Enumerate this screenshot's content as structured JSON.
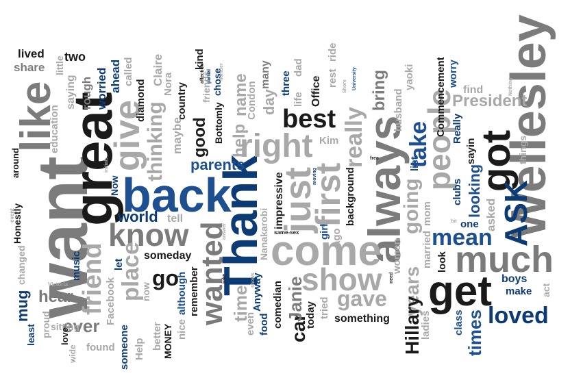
{
  "colors": {
    "dark_gray": "#1a1a1a",
    "mid_gray": "#7b7b7b",
    "light_gray": "#a8a8a8",
    "navy": "#0c3a75",
    "blue": "#1d4f91"
  },
  "words": [
    {
      "text": "want",
      "weight": 10,
      "color": "mid_gray"
    },
    {
      "text": "great",
      "weight": 8,
      "color": "dark_gray"
    },
    {
      "text": "Thank",
      "weight": 8,
      "color": "navy"
    },
    {
      "text": "back",
      "weight": 8,
      "color": "blue"
    },
    {
      "text": "Wellesley",
      "weight": 8,
      "color": "mid_gray"
    },
    {
      "text": "always",
      "weight": 7,
      "color": "mid_gray"
    },
    {
      "text": "come",
      "weight": 7,
      "color": "light_gray"
    },
    {
      "text": "like",
      "weight": 7,
      "color": "mid_gray"
    },
    {
      "text": "got",
      "weight": 6,
      "color": "dark_gray"
    },
    {
      "text": "much",
      "weight": 6,
      "color": "mid_gray"
    },
    {
      "text": "get",
      "weight": 6,
      "color": "dark_gray"
    },
    {
      "text": "ASK",
      "weight": 6,
      "color": "navy"
    },
    {
      "text": "give",
      "weight": 6,
      "color": "light_gray"
    },
    {
      "text": "just",
      "weight": 6,
      "color": "light_gray"
    },
    {
      "text": "show",
      "weight": 5,
      "color": "light_gray"
    },
    {
      "text": "first",
      "weight": 5,
      "color": "light_gray"
    },
    {
      "text": "right",
      "weight": 5,
      "color": "light_gray"
    },
    {
      "text": "know",
      "weight": 5,
      "color": "mid_gray"
    },
    {
      "text": "people",
      "weight": 5,
      "color": "light_gray"
    },
    {
      "text": "wanted",
      "weight": 5,
      "color": "mid_gray"
    },
    {
      "text": "friend",
      "weight": 5,
      "color": "light_gray"
    },
    {
      "text": "best",
      "weight": 4,
      "color": "dark_gray"
    },
    {
      "text": "mean",
      "weight": 4,
      "color": "blue"
    },
    {
      "text": "loved",
      "weight": 4,
      "color": "navy"
    },
    {
      "text": "take",
      "weight": 4,
      "color": "blue"
    },
    {
      "text": "gave",
      "weight": 4,
      "color": "light_gray"
    },
    {
      "text": "place",
      "weight": 4,
      "color": "light_gray"
    },
    {
      "text": "going",
      "weight": 4,
      "color": "light_gray"
    },
    {
      "text": "really",
      "weight": 4,
      "color": "light_gray"
    },
    {
      "text": "thinking",
      "weight": 4,
      "color": "light_gray"
    },
    {
      "text": "years",
      "weight": 4,
      "color": "light_gray"
    },
    {
      "text": "Hillary",
      "weight": 3,
      "color": "dark_gray"
    },
    {
      "text": "President",
      "weight": 3,
      "color": "light_gray"
    },
    {
      "text": "go",
      "weight": 3,
      "color": "dark_gray"
    },
    {
      "text": "times",
      "weight": 3,
      "color": "blue"
    },
    {
      "text": "hear",
      "weight": 3,
      "color": "mid_gray"
    },
    {
      "text": "ever",
      "weight": 3,
      "color": "mid_gray"
    },
    {
      "text": "looking",
      "weight": 3,
      "color": "blue"
    },
    {
      "text": "parents",
      "weight": 3,
      "color": "blue"
    },
    {
      "text": "world",
      "weight": 3,
      "color": "navy"
    },
    {
      "text": "car",
      "weight": 3,
      "color": "dark_gray"
    },
    {
      "text": "time",
      "weight": 3,
      "color": "light_gray"
    },
    {
      "text": "Janie",
      "weight": 3,
      "color": "mid_gray"
    },
    {
      "text": "bring",
      "weight": 3,
      "color": "mid_gray"
    },
    {
      "text": "good",
      "weight": 3,
      "color": "dark_gray"
    },
    {
      "text": "help",
      "weight": 3,
      "color": "light_gray"
    },
    {
      "text": "name",
      "weight": 3,
      "color": "light_gray"
    },
    {
      "text": "day",
      "weight": 3,
      "color": "light_gray"
    },
    {
      "text": "mug",
      "weight": 3,
      "color": "navy"
    },
    {
      "text": "two",
      "weight": 2,
      "color": "dark_gray"
    },
    {
      "text": "lived",
      "weight": 2,
      "color": "dark_gray"
    },
    {
      "text": "share",
      "weight": 2,
      "color": "mid_gray"
    },
    {
      "text": "saying",
      "weight": 2,
      "color": "light_gray"
    },
    {
      "text": "education",
      "weight": 2,
      "color": "light_gray"
    },
    {
      "text": "little",
      "weight": 2,
      "color": "light_gray"
    },
    {
      "text": "rough",
      "weight": 2,
      "color": "mid_gray"
    },
    {
      "text": "worried",
      "weight": 2,
      "color": "navy"
    },
    {
      "text": "ahead",
      "weight": 2,
      "color": "navy"
    },
    {
      "text": "called",
      "weight": 2,
      "color": "light_gray"
    },
    {
      "text": "Claire",
      "weight": 2,
      "color": "light_gray"
    },
    {
      "text": "Nora",
      "weight": 2,
      "color": "light_gray"
    },
    {
      "text": "diamond",
      "weight": 2,
      "color": "dark_gray"
    },
    {
      "text": "better",
      "weight": 2,
      "color": "light_gray"
    },
    {
      "text": "maybe",
      "weight": 2,
      "color": "light_gray"
    },
    {
      "text": "country",
      "weight": 2,
      "color": "dark_gray"
    },
    {
      "text": "kind",
      "weight": 2,
      "color": "dark_gray"
    },
    {
      "text": "friends",
      "weight": 2,
      "color": "light_gray"
    },
    {
      "text": "Bottomly",
      "weight": 2,
      "color": "dark_gray"
    },
    {
      "text": "chose",
      "weight": 2,
      "color": "navy"
    },
    {
      "text": "many",
      "weight": 2,
      "color": "mid_gray"
    },
    {
      "text": "Condon",
      "weight": 2,
      "color": "light_gray"
    },
    {
      "text": "three",
      "weight": 2,
      "color": "navy"
    },
    {
      "text": "life",
      "weight": 2,
      "color": "light_gray"
    },
    {
      "text": "dad",
      "weight": 2,
      "color": "light_gray"
    },
    {
      "text": "Office",
      "weight": 2,
      "color": "dark_gray"
    },
    {
      "text": "rest",
      "weight": 2,
      "color": "light_gray"
    },
    {
      "text": "ride",
      "weight": 2,
      "color": "light_gray"
    },
    {
      "text": "Kim",
      "weight": 2,
      "color": "light_gray"
    },
    {
      "text": "background",
      "weight": 2,
      "color": "dark_gray"
    },
    {
      "text": "husband",
      "weight": 2,
      "color": "light_gray"
    },
    {
      "text": "yaoki",
      "weight": 2,
      "color": "light_gray"
    },
    {
      "text": "Commencement",
      "weight": 2,
      "color": "dark_gray"
    },
    {
      "text": "worry",
      "weight": 2,
      "color": "blue"
    },
    {
      "text": "find",
      "weight": 2,
      "color": "light_gray"
    },
    {
      "text": "Really",
      "weight": 2,
      "color": "navy"
    },
    {
      "text": "sayin",
      "weight": 2,
      "color": "dark_gray"
    },
    {
      "text": "things",
      "weight": 2,
      "color": "light_gray"
    },
    {
      "text": "list",
      "weight": 2,
      "color": "blue"
    },
    {
      "text": "clubs",
      "weight": 2,
      "color": "navy"
    },
    {
      "text": "asked",
      "weight": 2,
      "color": "light_gray"
    },
    {
      "text": "one",
      "weight": 2,
      "color": "navy"
    },
    {
      "text": "mom",
      "weight": 2,
      "color": "light_gray"
    },
    {
      "text": "married",
      "weight": 2,
      "color": "light_gray"
    },
    {
      "text": "look",
      "weight": 2,
      "color": "dark_gray"
    },
    {
      "text": "boys",
      "weight": 2,
      "color": "navy"
    },
    {
      "text": "make",
      "weight": 2,
      "color": "navy"
    },
    {
      "text": "act",
      "weight": 2,
      "color": "light_gray"
    },
    {
      "text": "class",
      "weight": 2,
      "color": "blue"
    },
    {
      "text": "ladies",
      "weight": 2,
      "color": "light_gray"
    },
    {
      "text": "women",
      "weight": 2,
      "color": "light_gray"
    },
    {
      "text": "something",
      "weight": 2,
      "color": "dark_gray"
    },
    {
      "text": "tried",
      "weight": 2,
      "color": "light_gray"
    },
    {
      "text": "today",
      "weight": 2,
      "color": "dark_gray"
    },
    {
      "text": "ago",
      "weight": 2,
      "color": "light_gray"
    },
    {
      "text": "girl",
      "weight": 2,
      "color": "blue"
    },
    {
      "text": "impressive",
      "weight": 2,
      "color": "dark_gray"
    },
    {
      "text": "Nanakarobi",
      "weight": 2,
      "color": "light_gray"
    },
    {
      "text": "comedian",
      "weight": 2,
      "color": "dark_gray"
    },
    {
      "text": "food",
      "weight": 2,
      "color": "navy"
    },
    {
      "text": "Anyway",
      "weight": 2,
      "color": "navy"
    },
    {
      "text": "even",
      "weight": 2,
      "color": "light_gray"
    },
    {
      "text": "someday",
      "weight": 2,
      "color": "dark_gray"
    },
    {
      "text": "tell",
      "weight": 2,
      "color": "light_gray"
    },
    {
      "text": "remember",
      "weight": 2,
      "color": "dark_gray"
    },
    {
      "text": "although",
      "weight": 2,
      "color": "blue"
    },
    {
      "text": "nice",
      "weight": 2,
      "color": "light_gray"
    },
    {
      "text": "MONEY",
      "weight": 2,
      "color": "dark_gray"
    },
    {
      "text": "now",
      "weight": 2,
      "color": "light_gray"
    },
    {
      "text": "Help",
      "weight": 2,
      "color": "light_gray"
    },
    {
      "text": "someone",
      "weight": 2,
      "color": "navy"
    },
    {
      "text": "found",
      "weight": 2,
      "color": "light_gray"
    },
    {
      "text": "Facebook",
      "weight": 2,
      "color": "light_gray"
    },
    {
      "text": "let",
      "weight": 2,
      "color": "navy"
    },
    {
      "text": "music",
      "weight": 2,
      "color": "navy"
    },
    {
      "text": "Now",
      "weight": 2,
      "color": "navy"
    },
    {
      "text": "sitting",
      "weight": 2,
      "color": "light_gray"
    },
    {
      "text": "wide",
      "weight": 1,
      "color": "light_gray"
    },
    {
      "text": "love",
      "weight": 2,
      "color": "dark_gray"
    },
    {
      "text": "proud",
      "weight": 2,
      "color": "light_gray"
    },
    {
      "text": "least",
      "weight": 2,
      "color": "navy"
    },
    {
      "text": "changed",
      "weight": 2,
      "color": "light_gray"
    },
    {
      "text": "Honestly",
      "weight": 2,
      "color": "dark_gray"
    },
    {
      "text": "around",
      "weight": 2,
      "color": "dark_gray"
    },
    {
      "text": "event",
      "weight": 1,
      "color": "light_gray"
    },
    {
      "text": "Victoria",
      "weight": 1,
      "color": "light_gray"
    },
    {
      "text": "affection",
      "weight": 1,
      "color": "dark_gray"
    },
    {
      "text": "partial",
      "weight": 1,
      "color": "navy"
    },
    {
      "text": "joke",
      "weight": 1,
      "color": "dark_gray"
    },
    {
      "text": "shows",
      "weight": 1,
      "color": "light_gray"
    },
    {
      "text": "answer",
      "weight": 1,
      "color": "light_gray"
    },
    {
      "text": "same-sex",
      "weight": 1,
      "color": "dark_gray"
    },
    {
      "text": "moving",
      "weight": 1,
      "color": "navy"
    },
    {
      "text": "free",
      "weight": 1,
      "color": "dark_gray"
    },
    {
      "text": "need",
      "weight": 1,
      "color": "dark_gray"
    },
    {
      "text": "initials",
      "weight": 1,
      "color": "light_gray"
    },
    {
      "text": "Shore",
      "weight": 1,
      "color": "light_gray"
    },
    {
      "text": "number",
      "weight": 1,
      "color": "light_gray"
    },
    {
      "text": "University",
      "weight": 1,
      "color": "blue"
    },
    {
      "text": "bit",
      "weight": 1,
      "color": "light_gray"
    },
    {
      "text": "Nothing",
      "weight": 1,
      "color": "light_gray"
    }
  ]
}
